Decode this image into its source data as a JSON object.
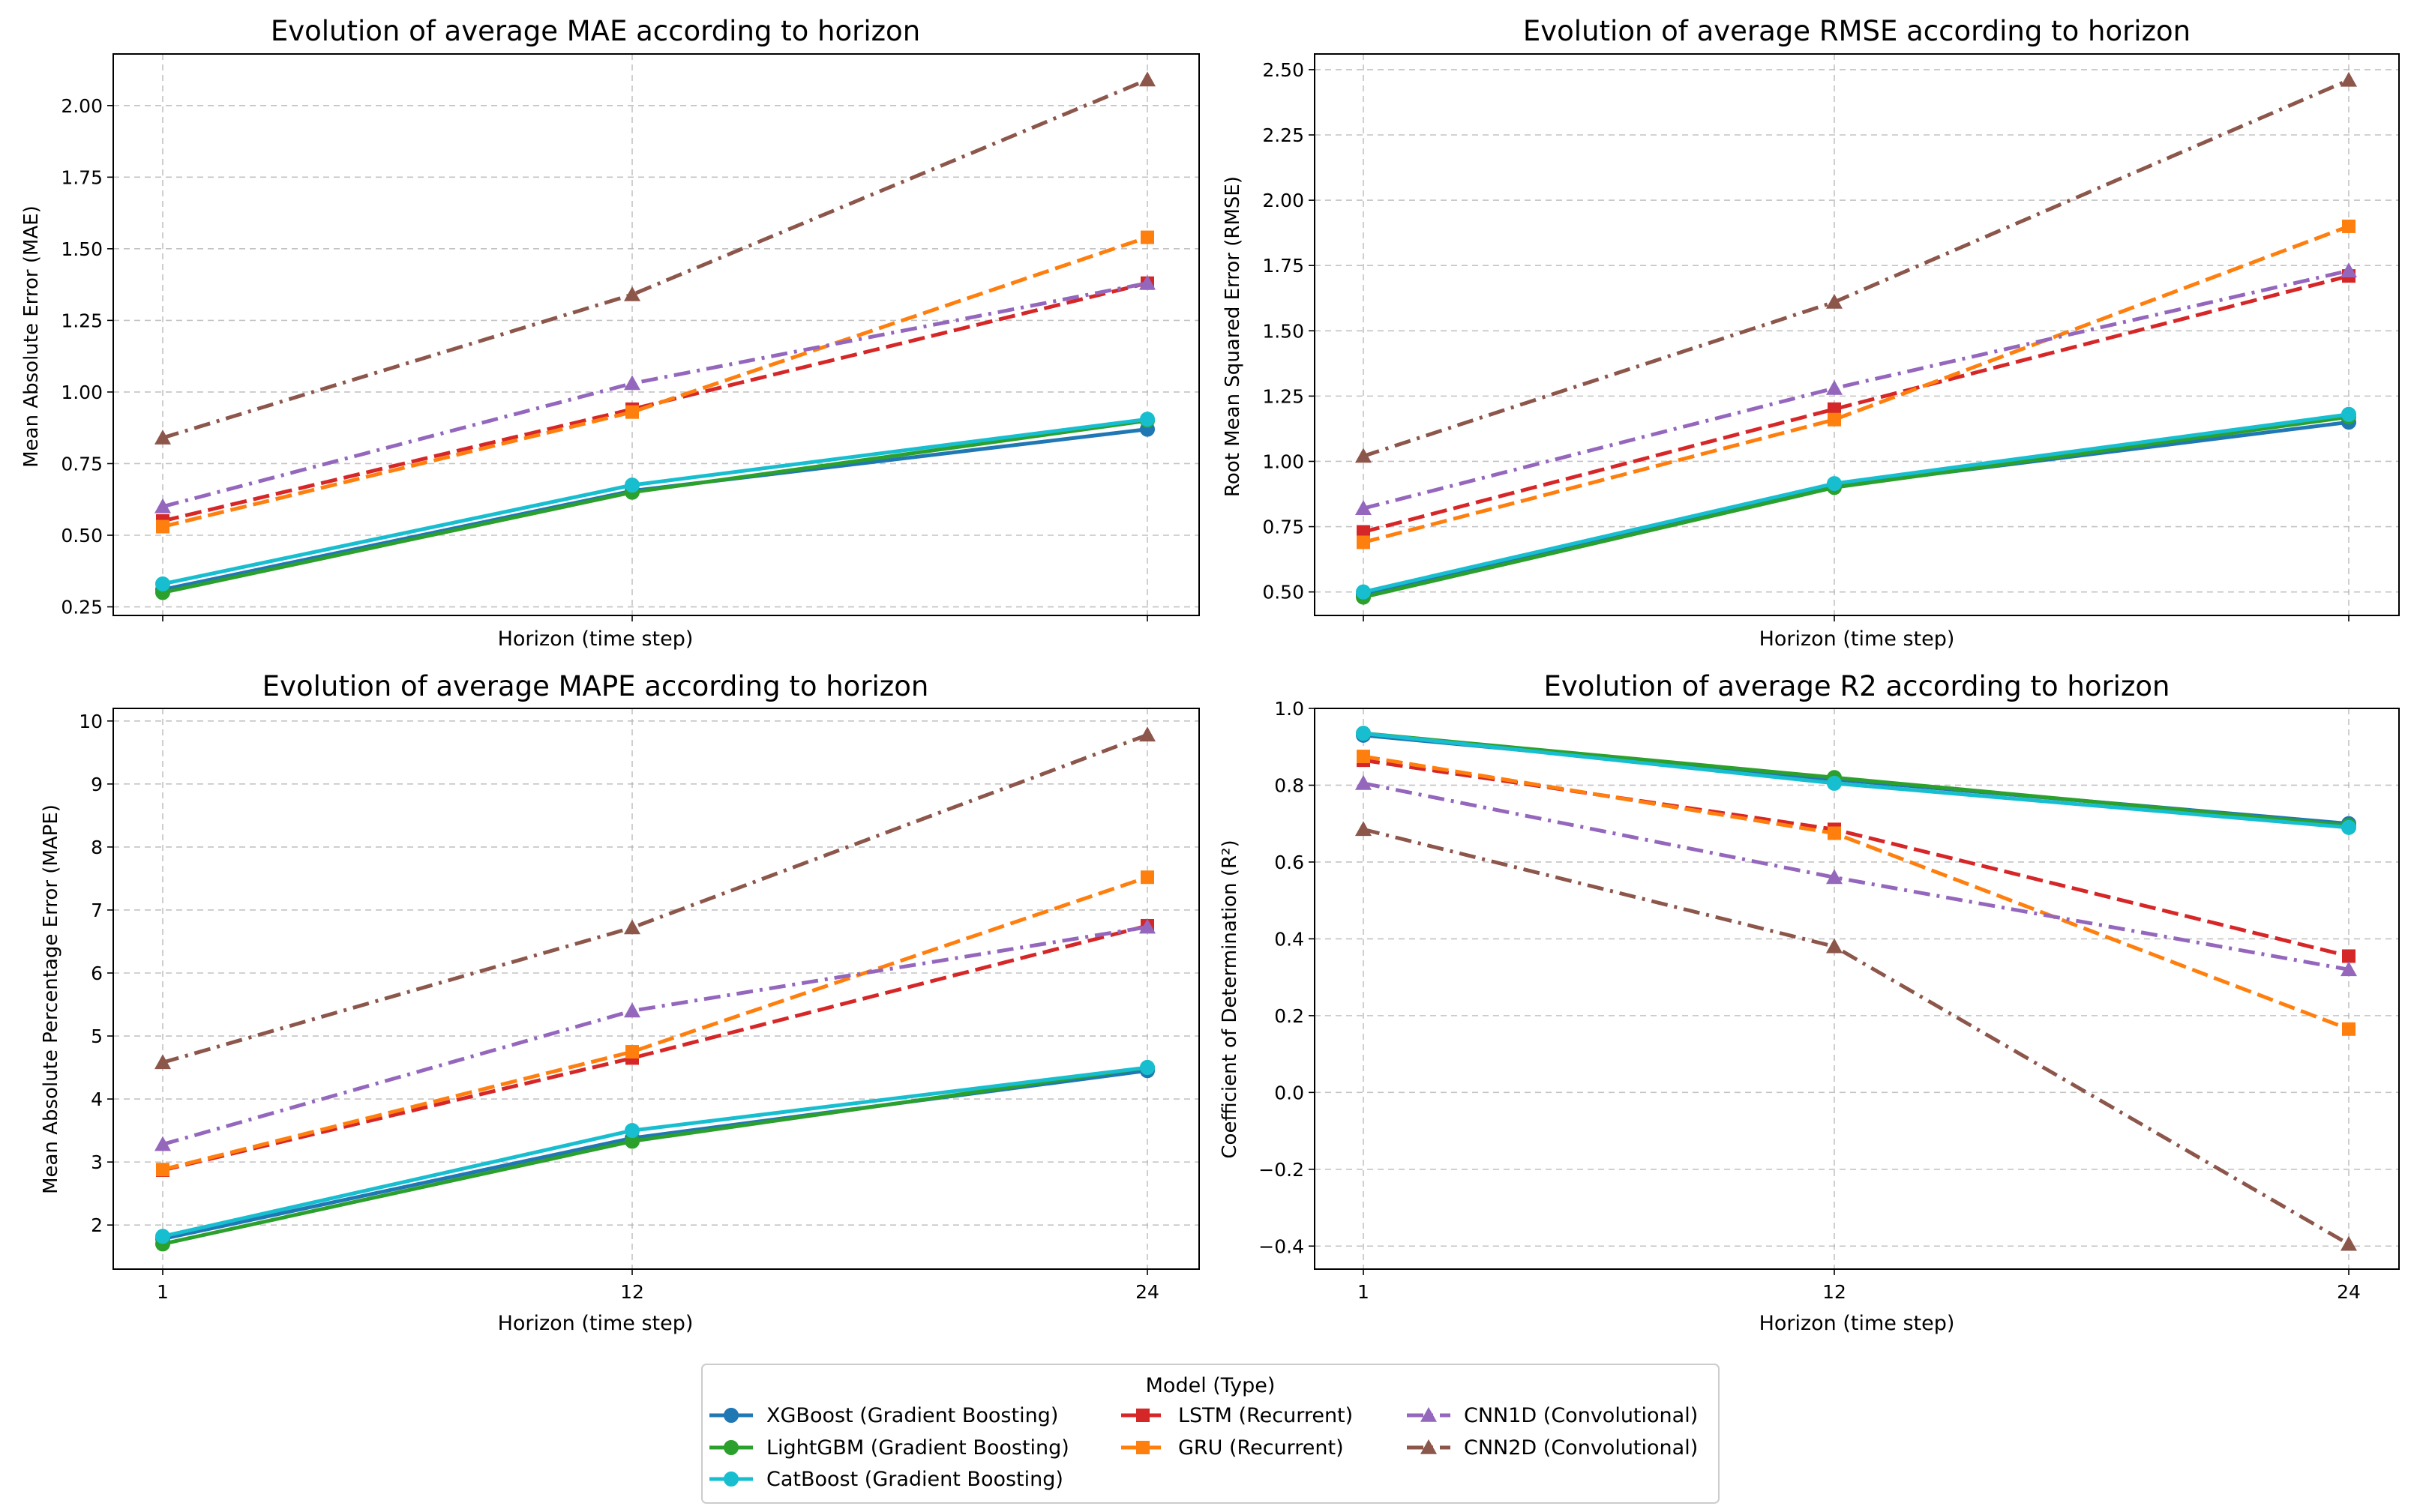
{
  "legend": {
    "title": "Model (Type)",
    "placement": "bottom-center"
  },
  "series_styles": [
    {
      "name": "XGBoost (Gradient Boosting)",
      "color": "#1f77b4",
      "marker": "circle",
      "dash": "solid"
    },
    {
      "name": "LightGBM (Gradient Boosting)",
      "color": "#2ca02c",
      "marker": "circle",
      "dash": "solid"
    },
    {
      "name": "CatBoost (Gradient Boosting)",
      "color": "#17becf",
      "marker": "circle",
      "dash": "solid"
    },
    {
      "name": "LSTM (Recurrent)",
      "color": "#d62728",
      "marker": "square",
      "dash": "dashed"
    },
    {
      "name": "GRU (Recurrent)",
      "color": "#ff7f0e",
      "marker": "square",
      "dash": "dashed"
    },
    {
      "name": "CNN1D (Convolutional)",
      "color": "#9467bd",
      "marker": "triangle",
      "dash": "dashdot"
    },
    {
      "name": "CNN2D (Convolutional)",
      "color": "#8c564b",
      "marker": "triangle",
      "dash": "dashdot"
    }
  ],
  "chart_data": [
    {
      "type": "line",
      "title": "Evolution of average MAE according to horizon",
      "xlabel": "Horizon (time step)",
      "ylabel": "Mean Absolute Error (MAE)",
      "x": [
        1,
        12,
        24
      ],
      "x_ticks": [
        "1",
        "12",
        "24"
      ],
      "show_x_tick_labels": false,
      "ylim": [
        0.22,
        2.18
      ],
      "y_ticks": [
        0.25,
        0.5,
        0.75,
        1.0,
        1.25,
        1.5,
        1.75,
        2.0
      ],
      "y_tick_labels": [
        "0.25",
        "0.50",
        "0.75",
        "1.00",
        "1.25",
        "1.50",
        "1.75",
        "2.00"
      ],
      "grid": true,
      "series": [
        {
          "name": "XGBoost (Gradient Boosting)",
          "values": [
            0.31,
            0.655,
            0.87
          ]
        },
        {
          "name": "LightGBM (Gradient Boosting)",
          "values": [
            0.3,
            0.65,
            0.9
          ]
        },
        {
          "name": "CatBoost (Gradient Boosting)",
          "values": [
            0.33,
            0.675,
            0.905
          ]
        },
        {
          "name": "LSTM (Recurrent)",
          "values": [
            0.55,
            0.94,
            1.38
          ]
        },
        {
          "name": "GRU (Recurrent)",
          "values": [
            0.53,
            0.93,
            1.54
          ]
        },
        {
          "name": "CNN1D (Convolutional)",
          "values": [
            0.6,
            1.03,
            1.38
          ]
        },
        {
          "name": "CNN2D (Convolutional)",
          "values": [
            0.84,
            1.34,
            2.09
          ]
        }
      ]
    },
    {
      "type": "line",
      "title": "Evolution of average RMSE according to horizon",
      "xlabel": "Horizon (time step)",
      "ylabel": "Root Mean Squared Error (RMSE)",
      "x": [
        1,
        12,
        24
      ],
      "x_ticks": [
        "1",
        "12",
        "24"
      ],
      "show_x_tick_labels": false,
      "ylim": [
        0.41,
        2.56
      ],
      "y_ticks": [
        0.5,
        0.75,
        1.0,
        1.25,
        1.5,
        1.75,
        2.0,
        2.25,
        2.5
      ],
      "y_tick_labels": [
        "0.50",
        "0.75",
        "1.00",
        "1.25",
        "1.50",
        "1.75",
        "2.00",
        "2.25",
        "2.50"
      ],
      "grid": true,
      "series": [
        {
          "name": "XGBoost (Gradient Boosting)",
          "values": [
            0.49,
            0.905,
            1.15
          ]
        },
        {
          "name": "LightGBM (Gradient Boosting)",
          "values": [
            0.48,
            0.9,
            1.17
          ]
        },
        {
          "name": "CatBoost (Gradient Boosting)",
          "values": [
            0.5,
            0.915,
            1.18
          ]
        },
        {
          "name": "LSTM (Recurrent)",
          "values": [
            0.73,
            1.2,
            1.71
          ]
        },
        {
          "name": "GRU (Recurrent)",
          "values": [
            0.69,
            1.16,
            1.9
          ]
        },
        {
          "name": "CNN1D (Convolutional)",
          "values": [
            0.82,
            1.28,
            1.73
          ]
        },
        {
          "name": "CNN2D (Convolutional)",
          "values": [
            1.02,
            1.61,
            2.46
          ]
        }
      ]
    },
    {
      "type": "line",
      "title": "Evolution of average MAPE according to horizon",
      "xlabel": "Horizon (time step)",
      "ylabel": "Mean Absolute Percentage Error (MAPE)",
      "x": [
        1,
        12,
        24
      ],
      "x_ticks": [
        "1",
        "12",
        "24"
      ],
      "show_x_tick_labels": true,
      "ylim": [
        1.3,
        10.2
      ],
      "y_ticks": [
        2,
        3,
        4,
        5,
        6,
        7,
        8,
        9,
        10
      ],
      "y_tick_labels": [
        "2",
        "3",
        "4",
        "5",
        "6",
        "7",
        "8",
        "9",
        "10"
      ],
      "grid": true,
      "series": [
        {
          "name": "XGBoost (Gradient Boosting)",
          "values": [
            1.78,
            3.38,
            4.45
          ]
        },
        {
          "name": "LightGBM (Gradient Boosting)",
          "values": [
            1.7,
            3.33,
            4.5
          ]
        },
        {
          "name": "CatBoost (Gradient Boosting)",
          "values": [
            1.82,
            3.5,
            4.5
          ]
        },
        {
          "name": "LSTM (Recurrent)",
          "values": [
            2.87,
            4.65,
            6.75
          ]
        },
        {
          "name": "GRU (Recurrent)",
          "values": [
            2.88,
            4.75,
            7.52
          ]
        },
        {
          "name": "CNN1D (Convolutional)",
          "values": [
            3.28,
            5.4,
            6.73
          ]
        },
        {
          "name": "CNN2D (Convolutional)",
          "values": [
            4.58,
            6.72,
            9.78
          ]
        }
      ]
    },
    {
      "type": "line",
      "title": "Evolution of average R2 according to horizon",
      "xlabel": "Horizon (time step)",
      "ylabel": "Coefficient of Determination (R²)",
      "x": [
        1,
        12,
        24
      ],
      "x_ticks": [
        "1",
        "12",
        "24"
      ],
      "show_x_tick_labels": true,
      "ylim": [
        -0.46,
        1.0
      ],
      "y_ticks": [
        -0.4,
        -0.2,
        0.0,
        0.2,
        0.4,
        0.6,
        0.8,
        1.0
      ],
      "y_tick_labels": [
        "−0.4",
        "−0.2",
        "0.0",
        "0.2",
        "0.4",
        "0.6",
        "0.8",
        "1.0"
      ],
      "grid": true,
      "series": [
        {
          "name": "XGBoost (Gradient Boosting)",
          "values": [
            0.93,
            0.815,
            0.7
          ]
        },
        {
          "name": "LightGBM (Gradient Boosting)",
          "values": [
            0.935,
            0.82,
            0.695
          ]
        },
        {
          "name": "CatBoost (Gradient Boosting)",
          "values": [
            0.935,
            0.805,
            0.69
          ]
        },
        {
          "name": "LSTM (Recurrent)",
          "values": [
            0.865,
            0.685,
            0.355
          ]
        },
        {
          "name": "GRU (Recurrent)",
          "values": [
            0.875,
            0.675,
            0.165
          ]
        },
        {
          "name": "CNN1D (Convolutional)",
          "values": [
            0.805,
            0.56,
            0.32
          ]
        },
        {
          "name": "CNN2D (Convolutional)",
          "values": [
            0.685,
            0.38,
            -0.395
          ]
        }
      ]
    }
  ]
}
